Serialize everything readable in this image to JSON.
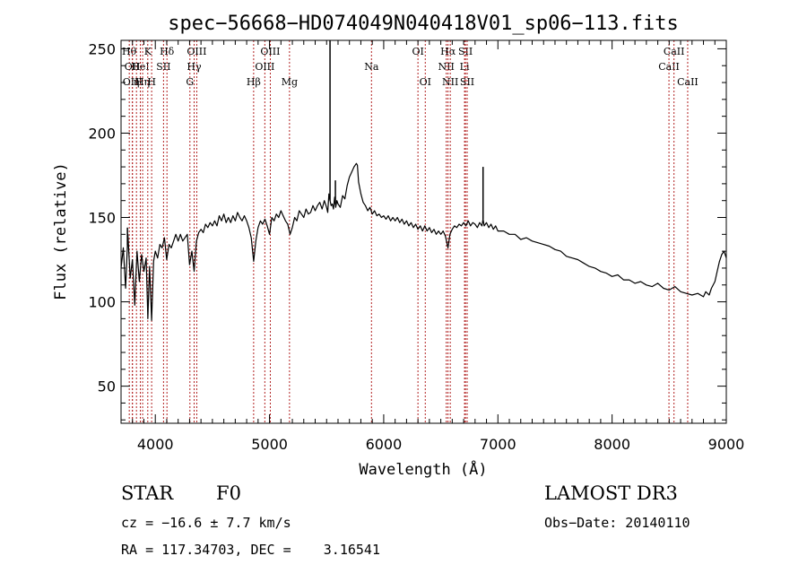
{
  "chart_data": {
    "type": "line",
    "title": "spec−56668−HD074049N040418V01_sp06−113.fits",
    "xlabel": "Wavelength (Å)",
    "ylabel": "Flux (relative)",
    "xlim": [
      3700,
      9000
    ],
    "ylim": [
      28,
      255
    ],
    "xticks": [
      4000,
      5000,
      6000,
      7000,
      8000,
      9000
    ],
    "yticks": [
      50,
      100,
      150,
      200,
      250
    ],
    "grid": false,
    "series": [
      {
        "name": "spectrum",
        "color": "#000000",
        "points": [
          [
            3700,
            120
          ],
          [
            3720,
            132
          ],
          [
            3740,
            108
          ],
          [
            3760,
            140
          ],
          [
            3780,
            114
          ],
          [
            3800,
            125
          ],
          [
            3820,
            98
          ],
          [
            3840,
            130
          ],
          [
            3860,
            112
          ],
          [
            3880,
            128
          ],
          [
            3900,
            118
          ],
          [
            3920,
            126
          ],
          [
            3935,
            90
          ],
          [
            3950,
            121
          ],
          [
            3968,
            89
          ],
          [
            3985,
            124
          ],
          [
            4000,
            130
          ],
          [
            4020,
            126
          ],
          [
            4040,
            134
          ],
          [
            4060,
            132
          ],
          [
            4080,
            138
          ],
          [
            4100,
            125
          ],
          [
            4120,
            134
          ],
          [
            4140,
            132
          ],
          [
            4160,
            136
          ],
          [
            4180,
            140
          ],
          [
            4200,
            136
          ],
          [
            4220,
            140
          ],
          [
            4240,
            136
          ],
          [
            4260,
            138
          ],
          [
            4280,
            140
          ],
          [
            4300,
            122
          ],
          [
            4320,
            130
          ],
          [
            4340,
            118
          ],
          [
            4360,
            136
          ],
          [
            4380,
            141
          ],
          [
            4400,
            143
          ],
          [
            4420,
            141
          ],
          [
            4440,
            146
          ],
          [
            4460,
            144
          ],
          [
            4480,
            147
          ],
          [
            4500,
            145
          ],
          [
            4520,
            148
          ],
          [
            4540,
            145
          ],
          [
            4560,
            151
          ],
          [
            4580,
            148
          ],
          [
            4600,
            152
          ],
          [
            4620,
            147
          ],
          [
            4640,
            150
          ],
          [
            4660,
            147
          ],
          [
            4680,
            151
          ],
          [
            4700,
            148
          ],
          [
            4720,
            153
          ],
          [
            4740,
            150
          ],
          [
            4760,
            148
          ],
          [
            4780,
            151
          ],
          [
            4800,
            148
          ],
          [
            4820,
            144
          ],
          [
            4840,
            138
          ],
          [
            4861,
            124
          ],
          [
            4880,
            136
          ],
          [
            4900,
            144
          ],
          [
            4920,
            148
          ],
          [
            4940,
            146
          ],
          [
            4960,
            149
          ],
          [
            4980,
            145
          ],
          [
            5000,
            140
          ],
          [
            5020,
            150
          ],
          [
            5040,
            148
          ],
          [
            5060,
            152
          ],
          [
            5080,
            150
          ],
          [
            5100,
            154
          ],
          [
            5120,
            151
          ],
          [
            5140,
            148
          ],
          [
            5160,
            146
          ],
          [
            5180,
            140
          ],
          [
            5200,
            144
          ],
          [
            5220,
            150
          ],
          [
            5240,
            148
          ],
          [
            5260,
            154
          ],
          [
            5280,
            152
          ],
          [
            5300,
            150
          ],
          [
            5320,
            155
          ],
          [
            5340,
            152
          ],
          [
            5360,
            153
          ],
          [
            5380,
            157
          ],
          [
            5400,
            154
          ],
          [
            5420,
            157
          ],
          [
            5440,
            159
          ],
          [
            5460,
            155
          ],
          [
            5480,
            160
          ],
          [
            5500,
            156
          ],
          [
            5510,
            153
          ],
          [
            5520,
            164
          ],
          [
            5530,
            160
          ],
          [
            5540,
            157
          ],
          [
            5550,
            158
          ],
          [
            5560,
            155
          ],
          [
            5570,
            162
          ],
          [
            5580,
            156
          ],
          [
            5590,
            160
          ],
          [
            5600,
            158
          ],
          [
            5620,
            156
          ],
          [
            5640,
            163
          ],
          [
            5660,
            161
          ],
          [
            5680,
            169
          ],
          [
            5700,
            174
          ],
          [
            5720,
            177
          ],
          [
            5740,
            180
          ],
          [
            5760,
            182
          ],
          [
            5770,
            181
          ],
          [
            5780,
            171
          ],
          [
            5800,
            164
          ],
          [
            5820,
            159
          ],
          [
            5840,
            157
          ],
          [
            5860,
            154
          ],
          [
            5880,
            156
          ],
          [
            5900,
            152
          ],
          [
            5920,
            154
          ],
          [
            5940,
            151
          ],
          [
            5960,
            152
          ],
          [
            5980,
            150
          ],
          [
            6000,
            151
          ],
          [
            6020,
            149
          ],
          [
            6040,
            151
          ],
          [
            6060,
            148
          ],
          [
            6080,
            150
          ],
          [
            6100,
            148
          ],
          [
            6120,
            150
          ],
          [
            6140,
            147
          ],
          [
            6160,
            149
          ],
          [
            6180,
            146
          ],
          [
            6200,
            148
          ],
          [
            6220,
            145
          ],
          [
            6240,
            147
          ],
          [
            6260,
            144
          ],
          [
            6280,
            146
          ],
          [
            6300,
            143
          ],
          [
            6320,
            145
          ],
          [
            6340,
            142
          ],
          [
            6360,
            145
          ],
          [
            6380,
            142
          ],
          [
            6400,
            144
          ],
          [
            6420,
            141
          ],
          [
            6440,
            143
          ],
          [
            6460,
            140
          ],
          [
            6480,
            142
          ],
          [
            6500,
            140
          ],
          [
            6520,
            142
          ],
          [
            6540,
            139
          ],
          [
            6563,
            132
          ],
          [
            6580,
            140
          ],
          [
            6600,
            143
          ],
          [
            6620,
            145
          ],
          [
            6640,
            144
          ],
          [
            6660,
            146
          ],
          [
            6680,
            145
          ],
          [
            6700,
            147
          ],
          [
            6720,
            145
          ],
          [
            6740,
            148
          ],
          [
            6760,
            145
          ],
          [
            6780,
            147
          ],
          [
            6800,
            146
          ],
          [
            6820,
            144
          ],
          [
            6840,
            147
          ],
          [
            6860,
            145
          ],
          [
            6870,
            149
          ],
          [
            6880,
            145
          ],
          [
            6900,
            147
          ],
          [
            6920,
            144
          ],
          [
            6940,
            146
          ],
          [
            6960,
            143
          ],
          [
            6980,
            145
          ],
          [
            7000,
            142
          ],
          [
            7050,
            142
          ],
          [
            7100,
            140
          ],
          [
            7150,
            140
          ],
          [
            7200,
            137
          ],
          [
            7250,
            138
          ],
          [
            7300,
            136
          ],
          [
            7350,
            135
          ],
          [
            7400,
            134
          ],
          [
            7450,
            133
          ],
          [
            7500,
            131
          ],
          [
            7550,
            130
          ],
          [
            7600,
            127
          ],
          [
            7650,
            126
          ],
          [
            7700,
            125
          ],
          [
            7750,
            123
          ],
          [
            7800,
            121
          ],
          [
            7850,
            120
          ],
          [
            7900,
            118
          ],
          [
            7950,
            117
          ],
          [
            8000,
            115
          ],
          [
            8050,
            116
          ],
          [
            8100,
            113
          ],
          [
            8150,
            113
          ],
          [
            8200,
            111
          ],
          [
            8250,
            112
          ],
          [
            8300,
            110
          ],
          [
            8350,
            109
          ],
          [
            8400,
            111
          ],
          [
            8450,
            108
          ],
          [
            8500,
            107
          ],
          [
            8550,
            109
          ],
          [
            8600,
            106
          ],
          [
            8650,
            105
          ],
          [
            8700,
            104
          ],
          [
            8750,
            105
          ],
          [
            8800,
            103
          ],
          [
            8820,
            106
          ],
          [
            8850,
            104
          ],
          [
            8870,
            108
          ],
          [
            8900,
            112
          ],
          [
            8920,
            118
          ],
          [
            8940,
            124
          ],
          [
            8960,
            128
          ],
          [
            8980,
            130
          ],
          [
            9000,
            126
          ]
        ]
      }
    ],
    "spikes": [
      {
        "x": 5530,
        "flux_top": 255
      },
      {
        "x": 5577,
        "flux_top": 172
      },
      {
        "x": 6870,
        "flux_top": 180
      },
      {
        "x": 3756,
        "flux_top": 144
      }
    ],
    "line_markers": [
      {
        "x": 3772,
        "label": "Hθ",
        "row": 0
      },
      {
        "x": 3799,
        "label": "OII",
        "row": 1
      },
      {
        "x": 3800,
        "label": "OIII",
        "row": 2
      },
      {
        "x": 3835,
        "label": "η",
        "row": 2
      },
      {
        "x": 3869,
        "label": "HeI",
        "row": 1
      },
      {
        "x": 3889,
        "label": "Hη",
        "row": 2
      },
      {
        "x": 3934,
        "label": "K",
        "row": 0
      },
      {
        "x": 3968,
        "label": "H",
        "row": 2
      },
      {
        "x": 4072,
        "label": "SII",
        "row": 1
      },
      {
        "x": 4102,
        "label": "Hδ",
        "row": 0
      },
      {
        "x": 4303,
        "label": "G",
        "row": 2
      },
      {
        "x": 4340,
        "label": "Hγ",
        "row": 1
      },
      {
        "x": 4363,
        "label": "OIII",
        "row": 0
      },
      {
        "x": 4861,
        "label": "Hβ",
        "row": 2
      },
      {
        "x": 4959,
        "label": "OIII",
        "row": 1
      },
      {
        "x": 5007,
        "label": "OIII",
        "row": 0
      },
      {
        "x": 5175,
        "label": "Mg",
        "row": 2
      },
      {
        "x": 5893,
        "label": "Na",
        "row": 1
      },
      {
        "x": 6300,
        "label": "OI",
        "row": 0
      },
      {
        "x": 6364,
        "label": "OI",
        "row": 2
      },
      {
        "x": 6548,
        "label": "NII",
        "row": 1
      },
      {
        "x": 6563,
        "label": "Hα",
        "row": 0
      },
      {
        "x": 6583,
        "label": "NII",
        "row": 2
      },
      {
        "x": 6708,
        "label": "Li",
        "row": 1
      },
      {
        "x": 6716,
        "label": "SII",
        "row": 0
      },
      {
        "x": 6731,
        "label": "SII",
        "row": 2
      },
      {
        "x": 8498,
        "label": "CaII",
        "row": 1
      },
      {
        "x": 8542,
        "label": "CaII",
        "row": 0
      },
      {
        "x": 8662,
        "label": "CaII",
        "row": 2
      }
    ],
    "marker_color": "#b22222"
  },
  "info": {
    "object_type": "STAR",
    "subclass": "F0",
    "survey": "LAMOST DR3",
    "cz_line": "cz = −16.6 ± 7.7 km/s",
    "obs_date": "Obs−Date: 20140110",
    "coords": "RA = 117.34703, DEC =    3.16541"
  }
}
